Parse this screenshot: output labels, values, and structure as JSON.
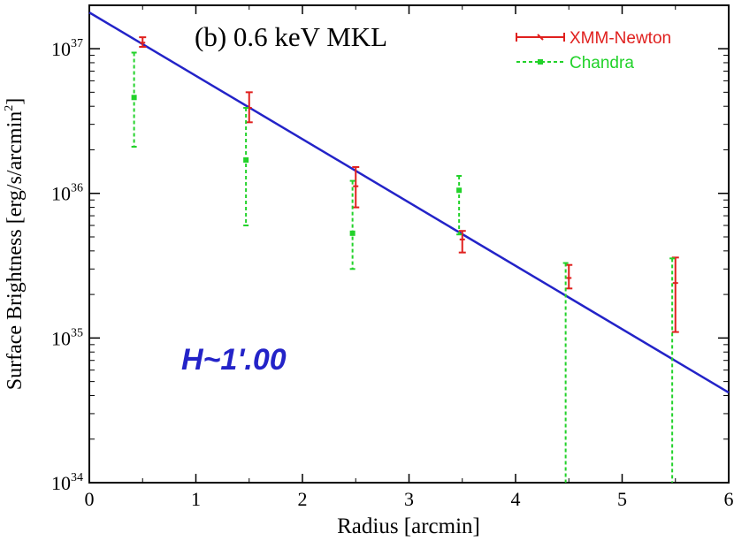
{
  "chart_data": {
    "type": "scatter",
    "title": "(b) 0.6 keV MKL",
    "annotation": "H~1'.00",
    "xlabel": "Radius [arcmin]",
    "ylabel": "Surface Brightness [erg/s/arcmin",
    "ylabel_sup": "2",
    "ylabel_close": "]",
    "xlim": [
      0,
      6
    ],
    "ylim_log10": [
      34,
      37.3
    ],
    "xticks": [
      0,
      1,
      2,
      3,
      4,
      5,
      6
    ],
    "xtick_labels": [
      "0",
      "1",
      "2",
      "3",
      "4",
      "5",
      "6"
    ],
    "yticks_log10": [
      34,
      35,
      36,
      37
    ],
    "ytick_labels": [
      {
        "base": "10",
        "exp": "34"
      },
      {
        "base": "10",
        "exp": "35"
      },
      {
        "base": "10",
        "exp": "36"
      },
      {
        "base": "10",
        "exp": "37"
      }
    ],
    "legend_position": "top-right",
    "series": [
      {
        "name": "XMM-Newton",
        "color": "#e0201e",
        "style": "solid",
        "x": [
          0.5,
          1.5,
          2.5,
          3.5,
          4.5,
          5.5
        ],
        "y": [
          1.1e+37,
          3.9e+36,
          1.12e+36,
          4.8e+35,
          2.6e+35,
          2.4e+35
        ],
        "y_low": [
          1.03e+37,
          3.1e+36,
          8e+35,
          3.9e+35,
          2.2e+35,
          1.1e+35
        ],
        "y_high": [
          1.2e+37,
          5e+36,
          1.52e+36,
          5.5e+35,
          3.2e+35,
          3.6e+35
        ]
      },
      {
        "name": "Chandra",
        "color": "#22d22a",
        "style": "dashed",
        "x": [
          0.42,
          1.47,
          2.47,
          3.47,
          4.47,
          5.47
        ],
        "y": [
          4.6e+36,
          1.7e+36,
          5.3e+35,
          1.05e+36,
          0,
          0
        ],
        "y_low": [
          2.1e+36,
          6e+35,
          3e+35,
          5.2e+35,
          1e+34,
          1e+34
        ],
        "y_high": [
          9.4e+36,
          3.9e+36,
          1.22e+36,
          1.32e+36,
          3.3e+35,
          3.55e+35
        ]
      }
    ],
    "model_line": {
      "name": "model",
      "color": "#2323c8",
      "x": [
        0,
        6
      ],
      "y": [
        1.78e+37,
        4.2e+34
      ]
    }
  }
}
